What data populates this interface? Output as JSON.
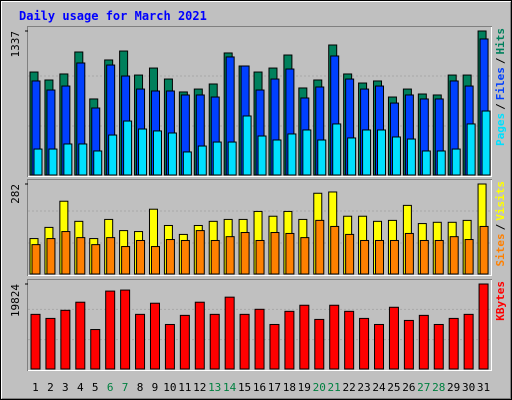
{
  "chart_data": [
    {
      "type": "bar",
      "title": "Daily usage for March 2021",
      "legend_separator": "/",
      "ylim": [
        0,
        1337
      ],
      "yticks": [
        1337
      ],
      "series": [
        {
          "name": "Hits",
          "color": "#00805c",
          "values": [
            956,
            882,
            938,
            1142,
            706,
            1068,
            1151,
            928,
            993,
            891,
            771,
            798,
            845,
            1133,
            1012,
            956,
            993,
            1114,
            808,
            882,
            1207,
            938,
            854,
            873,
            724,
            798,
            752,
            743,
            928,
            928,
            1337
          ]
        },
        {
          "name": "Files",
          "color": "#0040ff",
          "values": [
            873,
            789,
            826,
            1040,
            622,
            1021,
            919,
            798,
            780,
            780,
            743,
            743,
            724,
            1096,
            1012,
            789,
            891,
            984,
            715,
            817,
            1105,
            891,
            798,
            826,
            668,
            743,
            706,
            706,
            873,
            826,
            1263
          ]
        },
        {
          "name": "Pages",
          "color": "#00e0ff",
          "values": [
            241,
            241,
            288,
            288,
            223,
            371,
            501,
            427,
            409,
            390,
            214,
            269,
            306,
            306,
            548,
            362,
            325,
            381,
            418,
            325,
            474,
            344,
            418,
            418,
            353,
            334,
            223,
            223,
            241,
            474,
            594
          ]
        }
      ]
    },
    {
      "type": "bar",
      "legend_separator": "/",
      "ylim": [
        0,
        282
      ],
      "yticks": [
        282
      ],
      "series": [
        {
          "name": "Visits",
          "color": "#ffff00",
          "values": [
            111,
            146,
            228,
            165,
            111,
            171,
            136,
            133,
            203,
            152,
            124,
            152,
            165,
            171,
            171,
            196,
            181,
            196,
            171,
            253,
            257,
            181,
            181,
            165,
            168,
            215,
            158,
            162,
            162,
            168,
            282
          ]
        },
        {
          "name": "Sites",
          "color": "#ff8000",
          "values": [
            92,
            111,
            133,
            114,
            92,
            114,
            86,
            105,
            86,
            108,
            105,
            136,
            105,
            117,
            130,
            105,
            130,
            127,
            114,
            168,
            149,
            124,
            105,
            105,
            105,
            127,
            105,
            105,
            117,
            108,
            149
          ]
        }
      ]
    },
    {
      "type": "bar",
      "ylim": [
        0,
        19824
      ],
      "yticks": [
        19824
      ],
      "categories": [
        "1",
        "2",
        "3",
        "4",
        "5",
        "6",
        "7",
        "8",
        "9",
        "10",
        "11",
        "12",
        "13",
        "14",
        "15",
        "16",
        "17",
        "18",
        "19",
        "20",
        "21",
        "22",
        "23",
        "24",
        "25",
        "26",
        "27",
        "28",
        "29",
        "30",
        "31"
      ],
      "category_colors": [
        "#000000",
        "#000000",
        "#000000",
        "#000000",
        "#000000",
        "#008040",
        "#008040",
        "#000000",
        "#000000",
        "#000000",
        "#000000",
        "#000000",
        "#008040",
        "#008040",
        "#000000",
        "#000000",
        "#000000",
        "#000000",
        "#000000",
        "#008040",
        "#008040",
        "#000000",
        "#000000",
        "#000000",
        "#000000",
        "#000000",
        "#008040",
        "#008040",
        "#000000",
        "#000000",
        "#000000"
      ],
      "series": [
        {
          "name": "KBytes",
          "color": "#ff0000",
          "values": [
            12744,
            11800,
            13688,
            15576,
            9204,
            18172,
            18408,
            12744,
            15340,
            10384,
            12508,
            15576,
            12744,
            16756,
            12744,
            13924,
            10384,
            13452,
            14868,
            11564,
            14868,
            13452,
            11800,
            10384,
            14396,
            11328,
            12508,
            10384,
            11800,
            12744,
            19824
          ]
        }
      ]
    }
  ]
}
